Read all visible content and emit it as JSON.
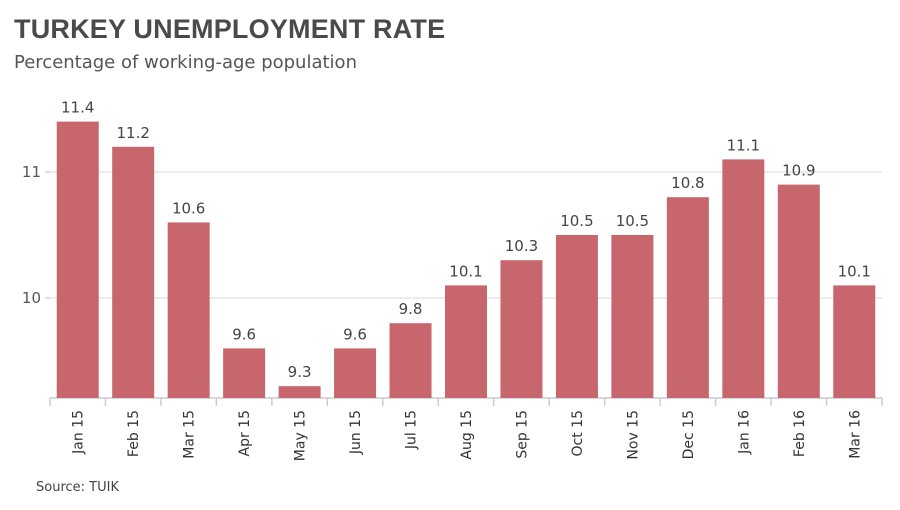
{
  "chart_data": {
    "type": "bar",
    "title": "TURKEY UNEMPLOYMENT RATE",
    "subtitle": "Percentage of working-age population",
    "source": "Source: TUIK",
    "categories": [
      "Jan 15",
      "Feb 15",
      "Mar 15",
      "Apr 15",
      "May 15",
      "Jun 15",
      "Jul 15",
      "Aug 15",
      "Sep 15",
      "Oct 15",
      "Nov 15",
      "Dec 15",
      "Jan 16",
      "Feb 16",
      "Mar 16"
    ],
    "values": [
      11.4,
      11.2,
      10.6,
      9.6,
      9.3,
      9.6,
      9.8,
      10.1,
      10.3,
      10.5,
      10.5,
      10.8,
      11.1,
      10.9,
      10.1
    ],
    "ylim": [
      9.2,
      11.7
    ],
    "yticks": [
      10,
      11
    ],
    "grid": true,
    "data_labels": true,
    "bar_color": "#c8666e",
    "xlabel": "",
    "ylabel": ""
  }
}
